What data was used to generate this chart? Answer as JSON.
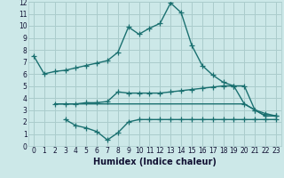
{
  "title": "",
  "xlabel": "Humidex (Indice chaleur)",
  "ylabel": "",
  "bg_color": "#cce8e8",
  "grid_color": "#aacccc",
  "line_color": "#1a7070",
  "xlim": [
    -0.5,
    23.5
  ],
  "ylim": [
    0,
    12
  ],
  "xticks": [
    0,
    1,
    2,
    3,
    4,
    5,
    6,
    7,
    8,
    9,
    10,
    11,
    12,
    13,
    14,
    15,
    16,
    17,
    18,
    19,
    20,
    21,
    22,
    23
  ],
  "yticks": [
    0,
    1,
    2,
    3,
    4,
    5,
    6,
    7,
    8,
    9,
    10,
    11,
    12
  ],
  "line1_x": [
    0,
    1,
    2,
    3,
    4,
    5,
    6,
    7,
    8,
    9,
    10,
    11,
    12,
    13,
    14,
    15,
    16,
    17,
    18,
    19,
    20,
    21,
    22,
    23
  ],
  "line1_y": [
    7.5,
    6.0,
    6.2,
    6.3,
    6.5,
    6.7,
    6.9,
    7.1,
    7.8,
    9.9,
    9.3,
    9.8,
    10.2,
    11.9,
    11.1,
    8.4,
    6.7,
    5.9,
    5.3,
    5.0,
    5.0,
    3.0,
    2.7,
    2.5
  ],
  "line2_x": [
    2,
    3,
    4,
    5,
    6,
    7,
    8,
    9,
    10,
    11,
    12,
    13,
    14,
    15,
    16,
    17,
    18,
    19,
    20,
    21,
    22,
    23
  ],
  "line2_y": [
    3.5,
    3.5,
    3.5,
    3.6,
    3.6,
    3.7,
    4.5,
    4.4,
    4.4,
    4.4,
    4.4,
    4.5,
    4.6,
    4.7,
    4.8,
    4.9,
    5.0,
    5.0,
    3.5,
    3.0,
    2.5,
    2.5
  ],
  "line3_x": [
    2,
    3,
    4,
    5,
    6,
    7,
    8,
    9,
    10,
    11,
    12,
    13,
    14,
    15,
    16,
    17,
    18,
    19,
    20,
    21,
    22,
    23
  ],
  "line3_y": [
    3.5,
    3.5,
    3.5,
    3.5,
    3.5,
    3.5,
    3.5,
    3.5,
    3.5,
    3.5,
    3.5,
    3.5,
    3.5,
    3.5,
    3.5,
    3.5,
    3.5,
    3.5,
    3.5,
    3.0,
    2.5,
    2.5
  ],
  "line4_x": [
    3,
    4,
    5,
    6,
    7,
    8,
    9,
    10,
    11,
    12,
    13,
    14,
    15,
    16,
    17,
    18,
    19,
    20,
    21,
    22,
    23
  ],
  "line4_y": [
    2.2,
    1.7,
    1.5,
    1.2,
    0.5,
    1.1,
    2.0,
    2.2,
    2.2,
    2.2,
    2.2,
    2.2,
    2.2,
    2.2,
    2.2,
    2.2,
    2.2,
    2.2,
    2.2,
    2.2,
    2.2
  ],
  "marker_size": 4,
  "line_width": 1.0,
  "tick_fontsize": 5.5,
  "xlabel_fontsize": 7
}
